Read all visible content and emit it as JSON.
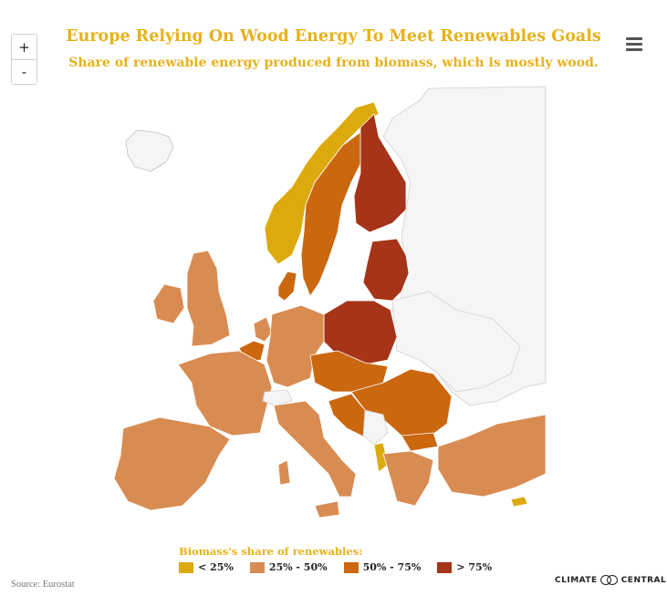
{
  "title": "Europe Relying On Wood Energy To Meet Renewables Goals",
  "subtitle": "Share of renewable energy produced from biomass, which is mostly wood.",
  "zoom": {
    "in_label": "+",
    "out_label": "-"
  },
  "legend": {
    "title": "Biomass's share of renewables:",
    "items": [
      {
        "label": "< 25%",
        "color": "#dcaa0c"
      },
      {
        "label": "25% - 50%",
        "color": "#d98c52"
      },
      {
        "label": "50% - 75%",
        "color": "#cb670f"
      },
      {
        "label": "> 75%",
        "color": "#a63418"
      }
    ]
  },
  "source": "Source: Eurostat",
  "logo": {
    "left": "CLIMATE",
    "right": "CENTRAL"
  },
  "colors": {
    "title": "#e6b21a",
    "no_data": "#f5f5f5",
    "border": "#ffffff"
  },
  "icons": [
    "hamburger-menu-icon",
    "climate-central-logo-icon"
  ]
}
